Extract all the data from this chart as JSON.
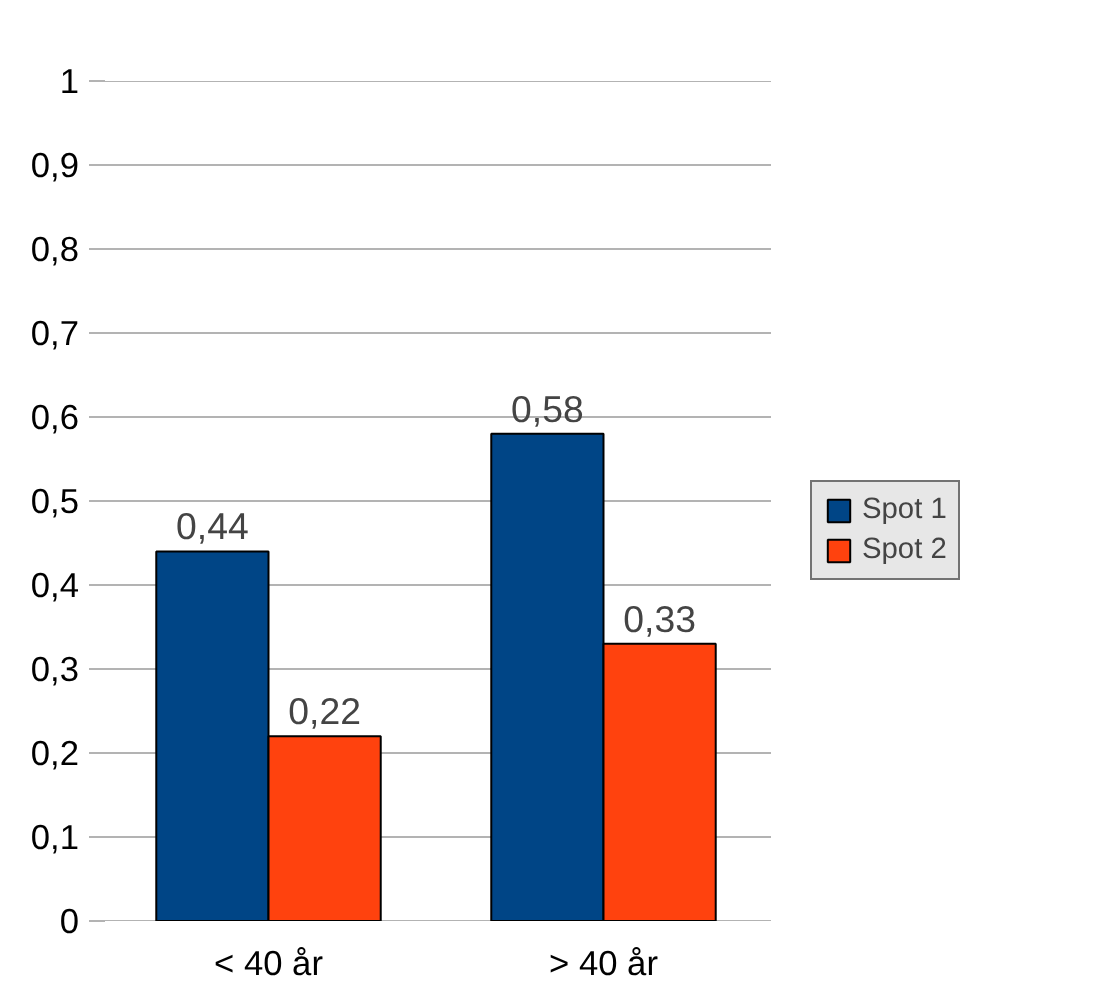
{
  "chart_data": {
    "type": "bar",
    "categories": [
      "< 40 år",
      "> 40 år"
    ],
    "series": [
      {
        "name": "Spot 1",
        "color": "#004586",
        "values": [
          0.44,
          0.58
        ],
        "value_labels": [
          "0,44",
          "0,58"
        ]
      },
      {
        "name": "Spot 2",
        "color": "#ff420e",
        "values": [
          0.22,
          0.33
        ],
        "value_labels": [
          "0,22",
          "0,33"
        ]
      }
    ],
    "ylim": [
      0,
      1
    ],
    "yticks": [
      {
        "value": 0,
        "label": "0"
      },
      {
        "value": 0.1,
        "label": "0,1"
      },
      {
        "value": 0.2,
        "label": "0,2"
      },
      {
        "value": 0.3,
        "label": "0,3"
      },
      {
        "value": 0.4,
        "label": "0,4"
      },
      {
        "value": 0.5,
        "label": "0,5"
      },
      {
        "value": 0.6,
        "label": "0,6"
      },
      {
        "value": 0.7,
        "label": "0,7"
      },
      {
        "value": 0.8,
        "label": "0,8"
      },
      {
        "value": 0.9,
        "label": "0,9"
      },
      {
        "value": 1,
        "label": "1"
      }
    ],
    "grid": "y",
    "legend": "right"
  }
}
